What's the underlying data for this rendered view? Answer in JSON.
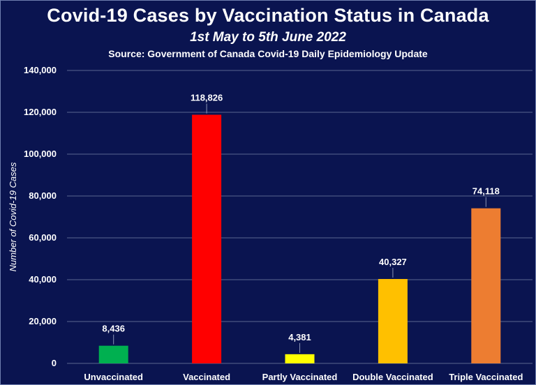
{
  "chart_data": {
    "type": "bar",
    "title": "Covid-19 Cases by Vaccination Status in Canada",
    "subtitle": "1st May to 5th June 2022",
    "source": "Source: Government of Canada Covid-19 Daily Epidemiology Update",
    "xlabel": "",
    "ylabel": "Number of Covid-19 Cases",
    "ylim": [
      0,
      140000
    ],
    "yticks": [
      0,
      20000,
      40000,
      60000,
      80000,
      100000,
      120000,
      140000
    ],
    "ytick_labels": [
      "0",
      "20,000",
      "40,000",
      "60,000",
      "80,000",
      "100,000",
      "120,000",
      "140,000"
    ],
    "grid": true,
    "legend": "none",
    "categories": [
      "Unvaccinated",
      "Vaccinated",
      "Partly Vaccinated",
      "Double Vaccinated",
      "Triple Vaccinated"
    ],
    "values": [
      8436,
      118826,
      4381,
      40327,
      74118
    ],
    "data_labels": [
      "8,436",
      "118,826",
      "4,381",
      "40,327",
      "74,118"
    ],
    "colors": [
      "#00b050",
      "#ff0000",
      "#ffff00",
      "#ffc000",
      "#ed7d31"
    ]
  },
  "theme": {
    "background": "#0a1450",
    "gridline": "#5a6690",
    "text": "#ffffff"
  }
}
